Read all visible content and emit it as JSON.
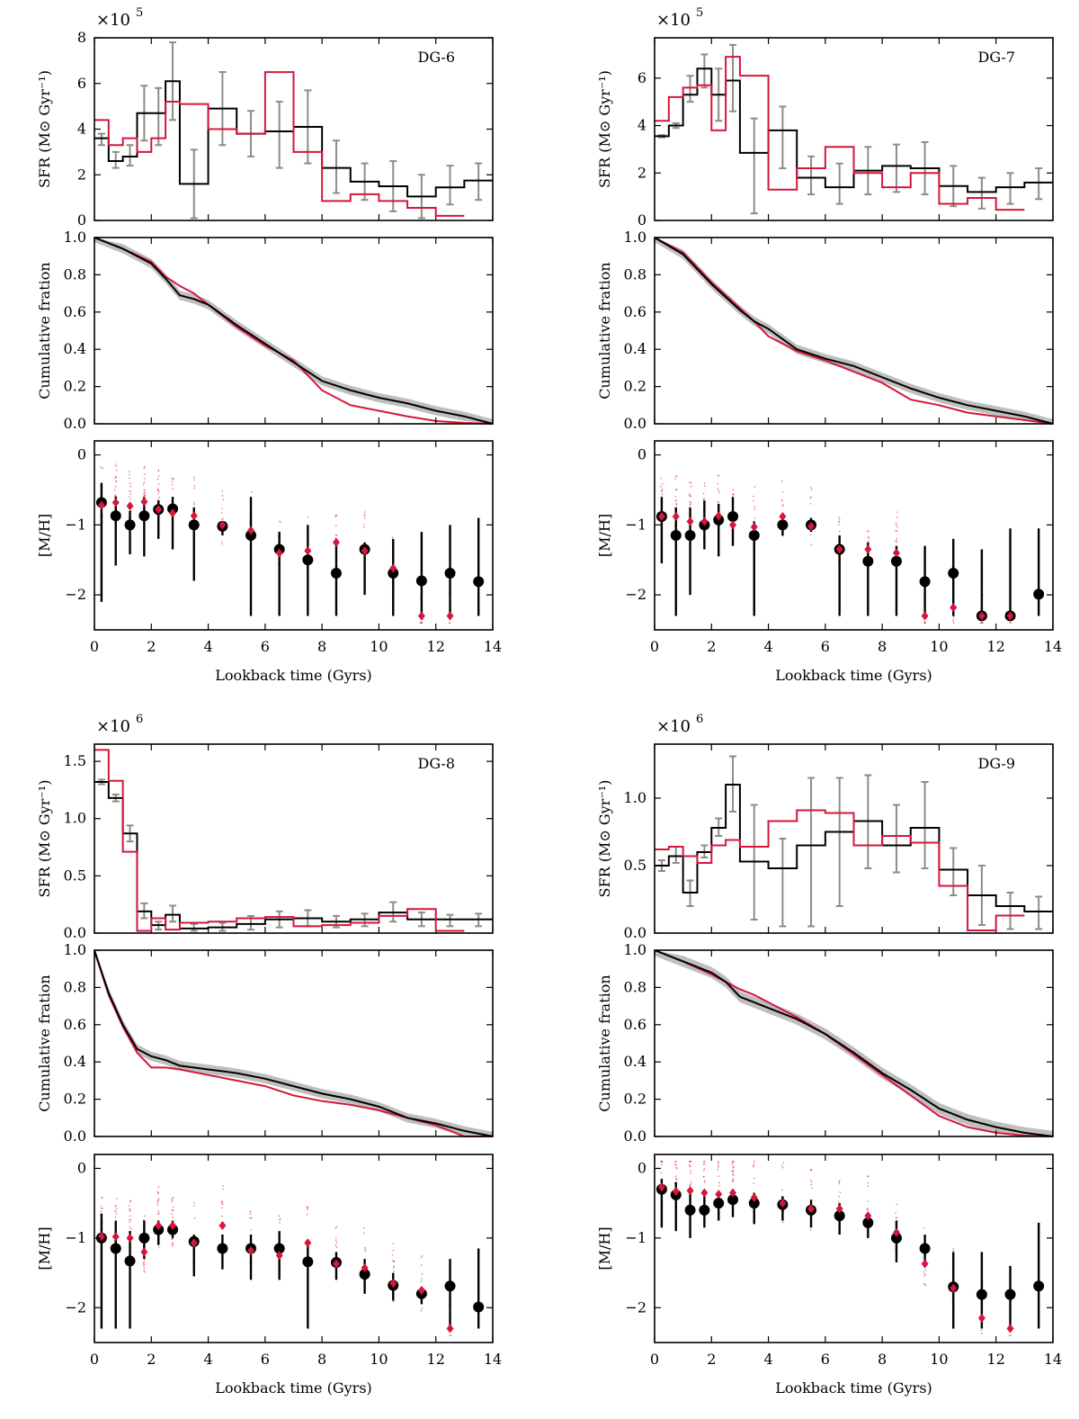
{
  "figure": {
    "xlabel": "Lookback time (Gyrs)",
    "sfr_ylabel": "SFR (M⊙ Gyr⁻¹)",
    "cum_ylabel": "Cumulative fration",
    "mh_ylabel": "[M/H]",
    "x_ticks": [
      "0",
      "2",
      "4",
      "6",
      "8",
      "10",
      "12",
      "14"
    ],
    "cum_ticks": [
      "0.0",
      "0.2",
      "0.4",
      "0.6",
      "0.8",
      "1.0"
    ],
    "mh_ticks": [
      "0",
      "−1",
      "−2"
    ],
    "colors": {
      "model": "#000000",
      "true": "#d6163c",
      "error": "#8c8c8c",
      "band": "#bfbfbf"
    }
  },
  "chart_data": [
    {
      "type": "line",
      "label": "DG-6",
      "multiplier": "×10",
      "exponent": "5",
      "sfr_ylim": [
        0,
        8
      ],
      "sfr_ticks": [
        0,
        2,
        4,
        6,
        8
      ],
      "sfr_tick_labels": [
        "0",
        "2",
        "4",
        "6",
        "8"
      ],
      "bin_edges": [
        0,
        0.5,
        1,
        1.5,
        2,
        2.5,
        3,
        4,
        5,
        6,
        7,
        8,
        9,
        10,
        11,
        12,
        13,
        14
      ],
      "sfr_model": [
        3.6,
        2.6,
        2.8,
        4.7,
        4.7,
        6.1,
        1.6,
        4.9,
        3.8,
        3.9,
        4.1,
        2.3,
        1.7,
        1.5,
        1.05,
        1.45,
        1.75
      ],
      "sfr_err_lo": [
        3.3,
        2.3,
        2.4,
        3.5,
        3.3,
        4.4,
        0.1,
        3.3,
        2.8,
        2.3,
        2.5,
        1.2,
        0.9,
        0.4,
        0.1,
        0.7,
        0.9
      ],
      "sfr_err_hi": [
        3.8,
        3.0,
        3.3,
        5.9,
        5.8,
        7.8,
        3.1,
        6.5,
        4.8,
        5.2,
        5.7,
        3.5,
        2.5,
        2.6,
        2.0,
        2.4,
        2.5
      ],
      "sfr_true": [
        4.4,
        3.3,
        3.6,
        3.0,
        3.6,
        5.2,
        5.1,
        4.0,
        3.8,
        6.5,
        3.0,
        0.85,
        1.15,
        0.85,
        0.55,
        0.2,
        0
      ],
      "cum_x": [
        0,
        1,
        2,
        2.5,
        3,
        3.5,
        4,
        5,
        6,
        7,
        8,
        9,
        10,
        11,
        12,
        13,
        14
      ],
      "cum_model": [
        1,
        0.94,
        0.86,
        0.78,
        0.69,
        0.67,
        0.64,
        0.53,
        0.43,
        0.33,
        0.23,
        0.18,
        0.14,
        0.11,
        0.07,
        0.04,
        0
      ],
      "cum_true": [
        1,
        0.94,
        0.87,
        0.79,
        0.74,
        0.7,
        0.64,
        0.52,
        0.42,
        0.34,
        0.18,
        0.1,
        0.07,
        0.04,
        0.015,
        0.005,
        0
      ],
      "cum_band": 0.025,
      "mh_x": [
        0.25,
        0.75,
        1.25,
        1.75,
        2.25,
        2.75,
        3.5,
        4.5,
        5.5,
        6.5,
        7.5,
        8.5,
        9.5,
        10.5,
        11.5,
        12.5,
        13.5
      ],
      "mh_model": [
        -0.68,
        -0.87,
        -1.0,
        -0.87,
        -0.78,
        -0.77,
        -1.0,
        -1.02,
        -1.15,
        -1.35,
        -1.5,
        -1.69,
        -1.35,
        -1.69,
        -1.8,
        -1.69,
        -1.81
      ],
      "mh_lo": [
        -2.1,
        -1.58,
        -1.42,
        -1.45,
        -1.2,
        -1.35,
        -1.8,
        -1.15,
        -2.3,
        -2.3,
        -2.3,
        -2.3,
        -2.0,
        -2.3,
        -2.3,
        -2.3,
        -2.3
      ],
      "mh_hi": [
        -0.4,
        -0.6,
        -0.8,
        -0.6,
        -0.65,
        -0.6,
        -0.75,
        -0.95,
        -0.6,
        -1.1,
        -1.0,
        -1.2,
        -1.25,
        -1.2,
        -1.1,
        -1.0,
        -0.9
      ],
      "mh_true": [
        -0.72,
        -0.68,
        -0.73,
        -0.67,
        -0.78,
        -0.83,
        -0.87,
        -1.0,
        -1.08,
        -1.4,
        -1.37,
        -1.25,
        -1.37,
        -1.62,
        -2.3,
        -2.3,
        null
      ]
    },
    {
      "type": "line",
      "label": "DG-7",
      "multiplier": "×10",
      "exponent": "5",
      "sfr_ylim": [
        0,
        7.7
      ],
      "sfr_ticks": [
        0,
        2,
        4,
        6
      ],
      "sfr_tick_labels": [
        "0",
        "2",
        "4",
        "6"
      ],
      "bin_edges": [
        0,
        0.5,
        1,
        1.5,
        2,
        2.5,
        3,
        4,
        5,
        6,
        7,
        8,
        9,
        10,
        11,
        12,
        13,
        14
      ],
      "sfr_model": [
        3.55,
        4.0,
        5.3,
        6.4,
        5.3,
        5.9,
        2.85,
        3.8,
        1.8,
        1.4,
        2.1,
        2.3,
        2.2,
        1.45,
        1.2,
        1.4,
        1.6
      ],
      "sfr_err_lo": [
        3.5,
        3.9,
        5.0,
        5.6,
        4.2,
        4.6,
        0.3,
        2.2,
        1.1,
        0.7,
        1.1,
        1.2,
        1.1,
        0.6,
        0.5,
        0.7,
        0.9
      ],
      "sfr_err_hi": [
        3.6,
        4.1,
        6.1,
        7.0,
        6.4,
        7.4,
        4.3,
        4.8,
        2.7,
        2.4,
        3.1,
        3.2,
        3.3,
        2.3,
        1.8,
        2.0,
        2.2
      ],
      "sfr_true": [
        4.2,
        5.2,
        5.6,
        5.7,
        3.8,
        6.9,
        6.1,
        1.3,
        2.2,
        3.1,
        2.0,
        1.4,
        2.0,
        0.7,
        0.95,
        0.45,
        0
      ],
      "cum_x": [
        0,
        1,
        2,
        2.5,
        3,
        3.5,
        4,
        5,
        6,
        7,
        8,
        9,
        10,
        11,
        12,
        13,
        14
      ],
      "cum_model": [
        1,
        0.91,
        0.75,
        0.68,
        0.61,
        0.55,
        0.51,
        0.4,
        0.35,
        0.31,
        0.25,
        0.19,
        0.14,
        0.1,
        0.07,
        0.04,
        0
      ],
      "cum_true": [
        1,
        0.92,
        0.76,
        0.69,
        0.62,
        0.55,
        0.47,
        0.39,
        0.34,
        0.28,
        0.22,
        0.13,
        0.1,
        0.06,
        0.04,
        0.02,
        0
      ],
      "cum_band": 0.025,
      "mh_x": [
        0.25,
        0.75,
        1.25,
        1.75,
        2.25,
        2.75,
        3.5,
        4.5,
        5.5,
        6.5,
        7.5,
        8.5,
        9.5,
        10.5,
        11.5,
        12.5,
        13.5
      ],
      "mh_model": [
        -0.88,
        -1.15,
        -1.15,
        -1.0,
        -0.93,
        -0.88,
        -1.15,
        -1.0,
        -1.0,
        -1.35,
        -1.52,
        -1.52,
        -1.81,
        -1.69,
        -2.3,
        -2.3,
        -1.99
      ],
      "mh_lo": [
        -1.55,
        -2.3,
        -2.0,
        -1.35,
        -1.45,
        -1.3,
        -2.3,
        -1.15,
        -1.1,
        -2.3,
        -2.3,
        -2.3,
        -2.3,
        -2.3,
        -2.3,
        -2.3,
        -2.3
      ],
      "mh_hi": [
        -0.6,
        -0.75,
        -0.75,
        -0.65,
        -0.7,
        -0.6,
        -0.95,
        -0.85,
        -0.9,
        -1.15,
        -1.25,
        -1.3,
        -1.3,
        -1.2,
        -1.35,
        -1.05,
        -1.05
      ],
      "mh_true": [
        -0.88,
        -0.88,
        -0.95,
        -0.95,
        -0.87,
        -1.0,
        -1.03,
        -0.88,
        -1.02,
        -1.35,
        -1.35,
        -1.4,
        -2.3,
        -2.18,
        -2.3,
        -2.3,
        null
      ]
    },
    {
      "type": "line",
      "label": "DG-8",
      "multiplier": "×10",
      "exponent": "6",
      "sfr_ylim": [
        0,
        1.65
      ],
      "sfr_ticks": [
        0,
        0.5,
        1.0,
        1.5
      ],
      "sfr_tick_labels": [
        "0.0",
        "0.5",
        "1.0",
        "1.5"
      ],
      "bin_edges": [
        0,
        0.5,
        1,
        1.5,
        2,
        2.5,
        3,
        4,
        5,
        6,
        7,
        8,
        9,
        10,
        11,
        12,
        13,
        14
      ],
      "sfr_model": [
        1.32,
        1.18,
        0.87,
        0.19,
        0.07,
        0.16,
        0.04,
        0.05,
        0.08,
        0.12,
        0.13,
        0.1,
        0.12,
        0.18,
        0.12,
        0.12,
        0.12
      ],
      "sfr_err_lo": [
        1.3,
        1.15,
        0.8,
        0.13,
        0.03,
        0.1,
        0.02,
        0.02,
        0.03,
        0.05,
        0.06,
        0.05,
        0.06,
        0.1,
        0.06,
        0.06,
        0.06
      ],
      "sfr_err_hi": [
        1.34,
        1.21,
        0.94,
        0.26,
        0.1,
        0.24,
        0.08,
        0.09,
        0.15,
        0.19,
        0.2,
        0.15,
        0.17,
        0.27,
        0.18,
        0.16,
        0.17
      ],
      "sfr_true": [
        1.6,
        1.33,
        0.71,
        0.02,
        0.13,
        0.03,
        0.09,
        0.1,
        0.13,
        0.14,
        0.06,
        0.07,
        0.09,
        0.15,
        0.21,
        0.02,
        0
      ],
      "cum_x": [
        0,
        0.5,
        1,
        1.5,
        2,
        2.5,
        3,
        4,
        5,
        6,
        7,
        8,
        9,
        10,
        11,
        12,
        13,
        14
      ],
      "cum_model": [
        1,
        0.77,
        0.6,
        0.47,
        0.43,
        0.41,
        0.38,
        0.36,
        0.34,
        0.31,
        0.27,
        0.23,
        0.2,
        0.16,
        0.1,
        0.07,
        0.03,
        0
      ],
      "cum_true": [
        1,
        0.76,
        0.59,
        0.45,
        0.37,
        0.37,
        0.36,
        0.33,
        0.3,
        0.27,
        0.22,
        0.19,
        0.17,
        0.14,
        0.1,
        0.06,
        0,
        0
      ],
      "cum_band": 0.025,
      "mh_x": [
        0.25,
        0.75,
        1.25,
        1.75,
        2.25,
        2.75,
        3.5,
        4.5,
        5.5,
        6.5,
        7.5,
        8.5,
        9.5,
        10.5,
        11.5,
        12.5,
        13.5
      ],
      "mh_model": [
        -1.0,
        -1.15,
        -1.33,
        -1.0,
        -0.88,
        -0.88,
        -1.05,
        -1.15,
        -1.15,
        -1.15,
        -1.34,
        -1.35,
        -1.52,
        -1.68,
        -1.8,
        -1.69,
        -1.99
      ],
      "mh_lo": [
        -2.3,
        -2.3,
        -2.3,
        -1.3,
        -1.1,
        -1.0,
        -1.55,
        -1.45,
        -1.6,
        -1.6,
        -2.3,
        -1.6,
        -1.8,
        -1.9,
        -1.95,
        -2.3,
        -2.3
      ],
      "mh_hi": [
        -0.65,
        -0.75,
        -0.9,
        -0.75,
        -0.75,
        -0.75,
        -0.95,
        -0.95,
        -0.95,
        -0.9,
        -1.1,
        -1.2,
        -1.3,
        -1.5,
        -1.7,
        -1.3,
        -1.15
      ],
      "mh_true": [
        -0.98,
        -0.98,
        -1.0,
        -1.2,
        -0.82,
        -0.82,
        -1.07,
        -0.82,
        -1.18,
        -1.25,
        -1.07,
        -1.37,
        -1.43,
        -1.65,
        -1.75,
        -2.3,
        null
      ]
    },
    {
      "type": "line",
      "label": "DG-9",
      "multiplier": "×10",
      "exponent": "6",
      "sfr_ylim": [
        0,
        1.4
      ],
      "sfr_ticks": [
        0,
        0.5,
        1.0
      ],
      "sfr_tick_labels": [
        "0.0",
        "0.5",
        "1.0"
      ],
      "bin_edges": [
        0,
        0.5,
        1,
        1.5,
        2,
        2.5,
        3,
        4,
        5,
        6,
        7,
        8,
        9,
        10,
        11,
        12,
        13,
        14
      ],
      "sfr_model": [
        0.5,
        0.57,
        0.3,
        0.6,
        0.78,
        1.1,
        0.53,
        0.48,
        0.65,
        0.75,
        0.83,
        0.65,
        0.78,
        0.47,
        0.28,
        0.2,
        0.16
      ],
      "sfr_err_lo": [
        0.46,
        0.52,
        0.2,
        0.56,
        0.72,
        0.9,
        0.1,
        0.05,
        0.05,
        0.2,
        0.48,
        0.45,
        0.48,
        0.28,
        0.06,
        0.03,
        0.03
      ],
      "sfr_err_hi": [
        0.54,
        0.64,
        0.39,
        0.65,
        0.85,
        1.31,
        0.95,
        0.7,
        1.15,
        1.15,
        1.17,
        0.95,
        1.12,
        0.63,
        0.5,
        0.3,
        0.27
      ],
      "sfr_true": [
        0.62,
        0.64,
        0.57,
        0.52,
        0.65,
        0.69,
        0.64,
        0.83,
        0.91,
        0.89,
        0.65,
        0.72,
        0.67,
        0.35,
        0.02,
        0.13,
        0
      ],
      "cum_x": [
        0,
        1,
        2,
        2.5,
        3,
        3.5,
        4,
        5,
        6,
        7,
        8,
        9,
        10,
        11,
        12,
        13,
        14
      ],
      "cum_model": [
        1,
        0.94,
        0.88,
        0.83,
        0.75,
        0.72,
        0.69,
        0.63,
        0.55,
        0.45,
        0.34,
        0.25,
        0.15,
        0.09,
        0.05,
        0.02,
        0
      ],
      "cum_true": [
        1,
        0.94,
        0.87,
        0.83,
        0.79,
        0.76,
        0.72,
        0.64,
        0.55,
        0.44,
        0.33,
        0.22,
        0.11,
        0.05,
        0.02,
        0.005,
        0
      ],
      "cum_band": 0.03,
      "mh_x": [
        0.25,
        0.75,
        1.25,
        1.75,
        2.25,
        2.75,
        3.5,
        4.5,
        5.5,
        6.5,
        7.5,
        8.5,
        9.5,
        10.5,
        11.5,
        12.5,
        13.5
      ],
      "mh_model": [
        -0.3,
        -0.38,
        -0.6,
        -0.6,
        -0.5,
        -0.45,
        -0.5,
        -0.52,
        -0.6,
        -0.68,
        -0.78,
        -1.0,
        -1.15,
        -1.7,
        -1.81,
        -1.81,
        -1.69
      ],
      "mh_lo": [
        -0.85,
        -0.9,
        -1.0,
        -0.85,
        -0.75,
        -0.7,
        -0.8,
        -0.75,
        -0.85,
        -0.95,
        -1.0,
        -1.35,
        -1.4,
        -2.3,
        -2.3,
        -2.3,
        -2.3
      ],
      "mh_hi": [
        -0.15,
        -0.2,
        -0.3,
        -0.4,
        -0.35,
        -0.3,
        -0.35,
        -0.4,
        -0.45,
        -0.5,
        -0.65,
        -0.75,
        -0.95,
        -1.2,
        -1.2,
        -1.4,
        -0.78
      ],
      "mh_true": [
        -0.27,
        -0.33,
        -0.32,
        -0.35,
        -0.37,
        -0.35,
        -0.42,
        -0.5,
        -0.58,
        -0.58,
        -0.68,
        -0.92,
        -1.37,
        -1.72,
        -2.15,
        -2.3,
        null
      ]
    }
  ]
}
